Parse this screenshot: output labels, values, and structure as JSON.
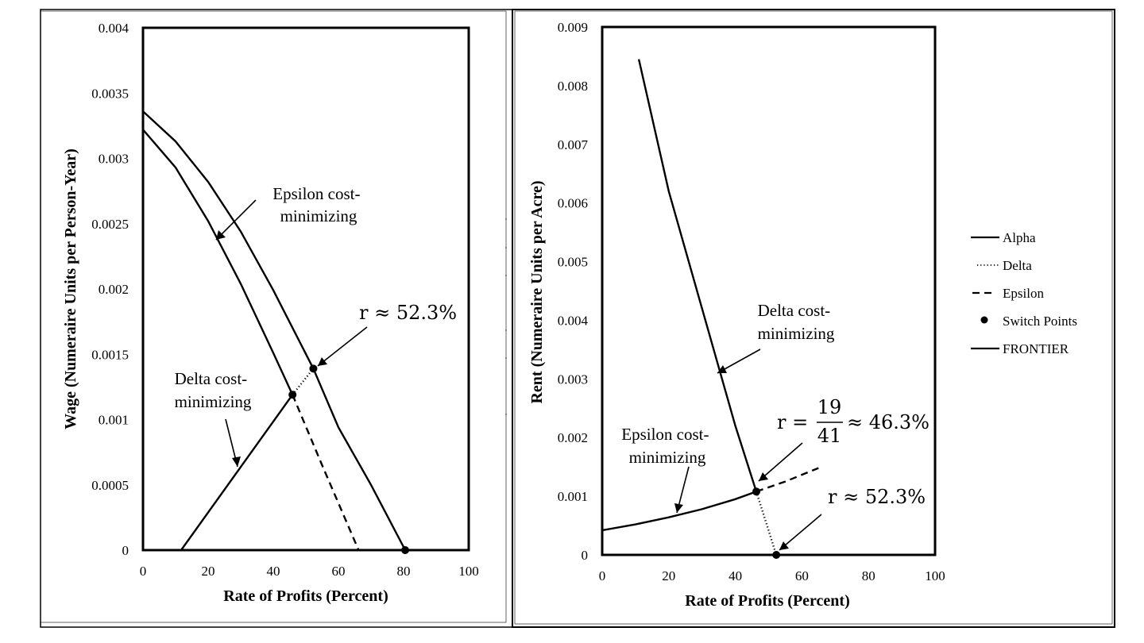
{
  "chart_data": [
    {
      "type": "line",
      "panel": "left",
      "xlabel": "Rate of Profits (Percent)",
      "ylabel": "Wage (Numeraire Units per Person-Year)",
      "xlim": [
        0,
        100
      ],
      "ylim": [
        0,
        0.004
      ],
      "x_ticks": [
        "0",
        "20",
        "40",
        "60",
        "80",
        "100"
      ],
      "y_ticks": [
        "0",
        "0.0005",
        "0.001",
        "0.0015",
        "0.002",
        "0.0025",
        "0.003",
        "0.0035",
        "0.004"
      ],
      "series": [
        {
          "name": "Alpha",
          "style": "solid",
          "x": [
            11.7,
            45.9
          ],
          "y": [
            0,
            0.00119
          ]
        },
        {
          "name": "Delta",
          "style": "solid",
          "x": [
            0,
            10,
            20,
            30,
            40,
            45.9
          ],
          "y": [
            0.00322,
            0.00293,
            0.00252,
            0.00204,
            0.00151,
            0.00119
          ]
        },
        {
          "name": "Delta",
          "style": "dotted",
          "x": [
            45.9,
            52.3
          ],
          "y": [
            0.00119,
            0.00139
          ]
        },
        {
          "name": "Epsilon",
          "style": "solid",
          "x": [
            0,
            10,
            20,
            30,
            40,
            52.3,
            60,
            70,
            80.5
          ],
          "y": [
            0.00336,
            0.00313,
            0.00282,
            0.00244,
            0.00199,
            0.00139,
            0.00094,
            0.0005,
            0
          ]
        },
        {
          "name": "Epsilon",
          "style": "dashed",
          "x": [
            45.9,
            55,
            66.2
          ],
          "y": [
            0.00119,
            0.00065,
            0
          ]
        }
      ],
      "switch_points": [
        {
          "x": 45.9,
          "y": 0.00119
        },
        {
          "x": 52.3,
          "y": 0.00139
        },
        {
          "x": 80.5,
          "y": 0
        }
      ],
      "annotations": [
        {
          "label": "epsilon",
          "lines": [
            "Epsilon cost-",
            "minimizing"
          ]
        },
        {
          "label": "switch",
          "text": "r ≈ 52.3%"
        },
        {
          "label": "delta",
          "lines": [
            "Delta cost-",
            "minimizing"
          ]
        }
      ]
    },
    {
      "type": "line",
      "panel": "right",
      "xlabel": "Rate of Profits (Percent)",
      "ylabel": "Rent (Numeraire Units per Acre)",
      "xlim": [
        0,
        100
      ],
      "ylim": [
        0,
        0.009
      ],
      "x_ticks": [
        "0",
        "20",
        "40",
        "60",
        "80",
        "100"
      ],
      "y_ticks": [
        "0",
        "0.001",
        "0.002",
        "0.003",
        "0.004",
        "0.005",
        "0.006",
        "0.007",
        "0.008",
        "0.009"
      ],
      "series": [
        {
          "name": "Delta",
          "style": "solid",
          "x": [
            11,
            20,
            30,
            40,
            46.3
          ],
          "y": [
            0.00845,
            0.0062,
            0.0042,
            0.0022,
            0.00108
          ]
        },
        {
          "name": "Delta",
          "style": "dotted",
          "x": [
            46.3,
            52.3
          ],
          "y": [
            0.00108,
            0
          ]
        },
        {
          "name": "Epsilon",
          "style": "solid",
          "x": [
            0,
            10,
            20,
            30,
            40,
            46.3
          ],
          "y": [
            0.00042,
            0.00052,
            0.00064,
            0.00078,
            0.00095,
            0.00108
          ]
        },
        {
          "name": "Epsilon",
          "style": "dashed",
          "x": [
            46.3,
            55,
            65
          ],
          "y": [
            0.00108,
            0.00125,
            0.00148
          ]
        }
      ],
      "switch_points": [
        {
          "x": 46.3,
          "y": 0.00108
        },
        {
          "x": 52.3,
          "y": 0
        }
      ],
      "annotations": [
        {
          "label": "delta",
          "lines": [
            "Delta cost-",
            "minimizing"
          ]
        },
        {
          "label": "switch1",
          "prefix": "r =",
          "numerator": "19",
          "denominator": "41",
          "suffix": "≈ 46.3%"
        },
        {
          "label": "epsilon",
          "lines": [
            "Epsilon cost-",
            "minimizing"
          ]
        },
        {
          "label": "switch2",
          "text": "r ≈ 52.3%"
        }
      ]
    }
  ],
  "legend": {
    "entries": [
      {
        "label": "Alpha",
        "style": "solid"
      },
      {
        "label": "Delta",
        "style": "dotted"
      },
      {
        "label": "Epsilon",
        "style": "dashed"
      },
      {
        "label": "Switch Points",
        "style": "marker"
      },
      {
        "label": "FRONTIER",
        "style": "solid"
      }
    ]
  }
}
